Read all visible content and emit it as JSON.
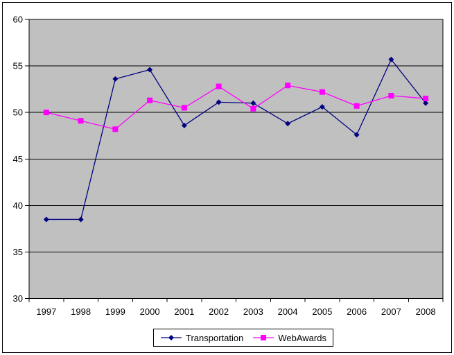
{
  "chart_data": {
    "type": "line",
    "title": "",
    "xlabel": "",
    "ylabel": "",
    "categories": [
      "1997",
      "1998",
      "1999",
      "2000",
      "2001",
      "2002",
      "2003",
      "2004",
      "2005",
      "2006",
      "2007",
      "2008"
    ],
    "series": [
      {
        "name": "Transportation",
        "color": "#000080",
        "marker": "diamond",
        "values": [
          38.5,
          38.5,
          53.6,
          54.6,
          48.6,
          51.1,
          51.0,
          48.8,
          50.6,
          47.6,
          55.7,
          51.0
        ]
      },
      {
        "name": "WebAwards",
        "color": "#FF00FF",
        "marker": "square",
        "values": [
          50.0,
          49.1,
          48.2,
          51.3,
          50.5,
          52.8,
          50.4,
          52.9,
          52.2,
          50.7,
          51.8,
          51.5
        ]
      }
    ],
    "ylim": [
      30,
      60
    ],
    "yticks": [
      30,
      35,
      40,
      45,
      50,
      55,
      60
    ],
    "grid": true,
    "legend_position": "bottom-center",
    "colors": {
      "plot_background": "#C0C0C0",
      "gridline": "#000000",
      "axis": "#000000",
      "chart_background": "#FFFFFF",
      "text": "#000000"
    }
  }
}
